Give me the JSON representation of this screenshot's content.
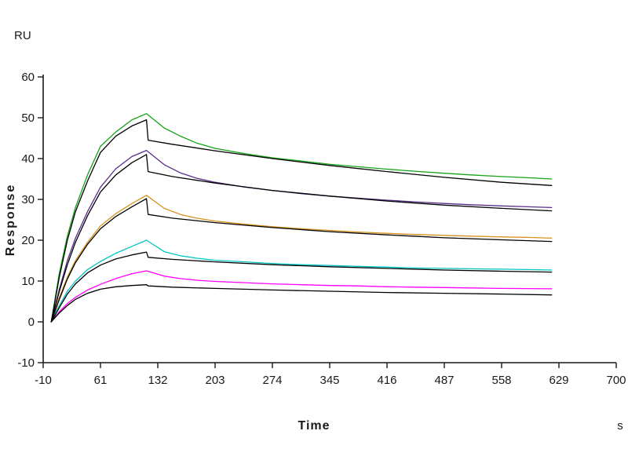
{
  "labels": {
    "y_unit": "RU",
    "ylabel": "Response",
    "xlabel": "Time",
    "x_unit": "s"
  },
  "chart_data": {
    "type": "line",
    "title": "",
    "xlabel": "Time",
    "ylabel": "Response",
    "x_unit": "s",
    "y_unit": "RU",
    "xlim": [
      -10,
      700
    ],
    "ylim": [
      -10,
      60
    ],
    "x_ticks": [
      -10,
      61,
      132,
      203,
      274,
      345,
      416,
      487,
      558,
      629,
      700
    ],
    "y_ticks": [
      -10,
      0,
      10,
      20,
      30,
      40,
      50,
      60
    ],
    "grid": false,
    "legend": "none",
    "description": "SPR sensorgram: five analyte concentrations (colored response curves) each overlaid with a black kinetic fit; association ~0-118 s, dissociation ~118-620 s",
    "series": [
      {
        "name": "conc-1-response",
        "role": "data",
        "color": "#17a317",
        "points": [
          [
            0,
            0
          ],
          [
            10,
            12
          ],
          [
            20,
            21
          ],
          [
            30,
            28
          ],
          [
            45,
            36
          ],
          [
            61,
            43
          ],
          [
            80,
            46.5
          ],
          [
            100,
            49.5
          ],
          [
            118,
            51
          ],
          [
            140,
            47.5
          ],
          [
            160,
            45.5
          ],
          [
            180,
            43.8
          ],
          [
            203,
            42.5
          ],
          [
            240,
            41.2
          ],
          [
            274,
            40.2
          ],
          [
            310,
            39.4
          ],
          [
            345,
            38.6
          ],
          [
            380,
            38
          ],
          [
            416,
            37.4
          ],
          [
            450,
            36.9
          ],
          [
            487,
            36.4
          ],
          [
            520,
            36
          ],
          [
            558,
            35.6
          ],
          [
            590,
            35.3
          ],
          [
            620,
            35
          ]
        ]
      },
      {
        "name": "conc-2-response",
        "role": "data",
        "color": "#5a2d8a",
        "points": [
          [
            0,
            0
          ],
          [
            10,
            8
          ],
          [
            20,
            15
          ],
          [
            30,
            20.5
          ],
          [
            45,
            27
          ],
          [
            61,
            33
          ],
          [
            80,
            37.5
          ],
          [
            100,
            40.5
          ],
          [
            118,
            42
          ],
          [
            140,
            38.5
          ],
          [
            160,
            36.5
          ],
          [
            180,
            35.2
          ],
          [
            203,
            34.2
          ],
          [
            240,
            33
          ],
          [
            274,
            32.2
          ],
          [
            310,
            31.4
          ],
          [
            345,
            30.8
          ],
          [
            380,
            30.3
          ],
          [
            416,
            29.8
          ],
          [
            450,
            29.4
          ],
          [
            487,
            29
          ],
          [
            520,
            28.7
          ],
          [
            558,
            28.4
          ],
          [
            590,
            28.2
          ],
          [
            620,
            28
          ]
        ]
      },
      {
        "name": "conc-3-response",
        "role": "data",
        "color": "#d4921e",
        "points": [
          [
            0,
            0
          ],
          [
            10,
            6
          ],
          [
            20,
            11
          ],
          [
            30,
            15
          ],
          [
            45,
            19.5
          ],
          [
            61,
            23.5
          ],
          [
            80,
            26.5
          ],
          [
            100,
            29
          ],
          [
            118,
            31
          ],
          [
            140,
            27.8
          ],
          [
            160,
            26.3
          ],
          [
            180,
            25.4
          ],
          [
            203,
            24.7
          ],
          [
            240,
            23.9
          ],
          [
            274,
            23.3
          ],
          [
            310,
            22.8
          ],
          [
            345,
            22.4
          ],
          [
            380,
            22
          ],
          [
            416,
            21.7
          ],
          [
            450,
            21.4
          ],
          [
            487,
            21.2
          ],
          [
            520,
            21
          ],
          [
            558,
            20.8
          ],
          [
            590,
            20.7
          ],
          [
            620,
            20.5
          ]
        ]
      },
      {
        "name": "conc-4-response",
        "role": "data",
        "color": "#00c6c6",
        "points": [
          [
            0,
            0
          ],
          [
            10,
            4
          ],
          [
            20,
            7.5
          ],
          [
            30,
            10
          ],
          [
            45,
            12.8
          ],
          [
            61,
            14.8
          ],
          [
            80,
            16.8
          ],
          [
            100,
            18.5
          ],
          [
            118,
            20
          ],
          [
            140,
            17.2
          ],
          [
            160,
            16.2
          ],
          [
            180,
            15.6
          ],
          [
            203,
            15.1
          ],
          [
            240,
            14.7
          ],
          [
            274,
            14.3
          ],
          [
            310,
            14
          ],
          [
            345,
            13.8
          ],
          [
            380,
            13.6
          ],
          [
            416,
            13.4
          ],
          [
            450,
            13.2
          ],
          [
            487,
            13.1
          ],
          [
            520,
            13
          ],
          [
            558,
            12.9
          ],
          [
            590,
            12.8
          ],
          [
            620,
            12.7
          ]
        ]
      },
      {
        "name": "conc-5-response",
        "role": "data",
        "color": "#ff00ff",
        "points": [
          [
            0,
            0
          ],
          [
            10,
            2.5
          ],
          [
            20,
            4.5
          ],
          [
            30,
            6
          ],
          [
            45,
            7.8
          ],
          [
            61,
            9.2
          ],
          [
            80,
            10.6
          ],
          [
            100,
            11.8
          ],
          [
            118,
            12.5
          ],
          [
            140,
            11.2
          ],
          [
            160,
            10.6
          ],
          [
            180,
            10.2
          ],
          [
            203,
            9.9
          ],
          [
            240,
            9.6
          ],
          [
            274,
            9.3
          ],
          [
            310,
            9.1
          ],
          [
            345,
            8.9
          ],
          [
            380,
            8.8
          ],
          [
            416,
            8.6
          ],
          [
            450,
            8.5
          ],
          [
            487,
            8.4
          ],
          [
            520,
            8.3
          ],
          [
            558,
            8.2
          ],
          [
            590,
            8.15
          ],
          [
            620,
            8.1
          ]
        ]
      },
      {
        "name": "conc-1-fit",
        "role": "fit",
        "color": "#000000",
        "points": [
          [
            0,
            0
          ],
          [
            10,
            11
          ],
          [
            20,
            20
          ],
          [
            30,
            27
          ],
          [
            45,
            34.5
          ],
          [
            61,
            41.5
          ],
          [
            80,
            45.5
          ],
          [
            100,
            48
          ],
          [
            118,
            49.5
          ],
          [
            120,
            44.5
          ],
          [
            150,
            43.5
          ],
          [
            203,
            41.9
          ],
          [
            274,
            40
          ],
          [
            345,
            38.3
          ],
          [
            416,
            36.8
          ],
          [
            487,
            35.4
          ],
          [
            558,
            34.2
          ],
          [
            620,
            33.4
          ]
        ]
      },
      {
        "name": "conc-2-fit",
        "role": "fit",
        "color": "#000000",
        "points": [
          [
            0,
            0
          ],
          [
            10,
            7.5
          ],
          [
            20,
            14
          ],
          [
            30,
            19.5
          ],
          [
            45,
            26
          ],
          [
            61,
            31.8
          ],
          [
            80,
            36
          ],
          [
            100,
            39
          ],
          [
            118,
            41
          ],
          [
            120,
            36.8
          ],
          [
            150,
            35.6
          ],
          [
            203,
            34
          ],
          [
            274,
            32.2
          ],
          [
            345,
            30.8
          ],
          [
            416,
            29.6
          ],
          [
            487,
            28.6
          ],
          [
            558,
            27.8
          ],
          [
            620,
            27.2
          ]
        ]
      },
      {
        "name": "conc-3-fit",
        "role": "fit",
        "color": "#000000",
        "points": [
          [
            0,
            0
          ],
          [
            10,
            5.5
          ],
          [
            20,
            10.5
          ],
          [
            30,
            14.5
          ],
          [
            45,
            19
          ],
          [
            61,
            22.8
          ],
          [
            80,
            25.8
          ],
          [
            100,
            28.2
          ],
          [
            118,
            30.2
          ],
          [
            120,
            26.3
          ],
          [
            150,
            25.4
          ],
          [
            203,
            24.3
          ],
          [
            274,
            23.1
          ],
          [
            345,
            22.1
          ],
          [
            416,
            21.3
          ],
          [
            487,
            20.6
          ],
          [
            558,
            20.1
          ],
          [
            620,
            19.7
          ]
        ]
      },
      {
        "name": "conc-4-fit",
        "role": "fit",
        "color": "#000000",
        "points": [
          [
            0,
            0
          ],
          [
            10,
            3.5
          ],
          [
            20,
            6.8
          ],
          [
            30,
            9.3
          ],
          [
            45,
            12
          ],
          [
            61,
            13.9
          ],
          [
            80,
            15.4
          ],
          [
            100,
            16.4
          ],
          [
            118,
            17.1
          ],
          [
            120,
            15.8
          ],
          [
            150,
            15.3
          ],
          [
            203,
            14.7
          ],
          [
            274,
            14
          ],
          [
            345,
            13.5
          ],
          [
            416,
            13.1
          ],
          [
            487,
            12.7
          ],
          [
            558,
            12.4
          ],
          [
            620,
            12.2
          ]
        ]
      },
      {
        "name": "conc-5-fit",
        "role": "fit",
        "color": "#000000",
        "points": [
          [
            0,
            0
          ],
          [
            10,
            2.2
          ],
          [
            20,
            4
          ],
          [
            30,
            5.5
          ],
          [
            45,
            7
          ],
          [
            61,
            8
          ],
          [
            80,
            8.6
          ],
          [
            100,
            8.9
          ],
          [
            118,
            9.1
          ],
          [
            120,
            8.8
          ],
          [
            150,
            8.5
          ],
          [
            203,
            8.2
          ],
          [
            274,
            7.8
          ],
          [
            345,
            7.5
          ],
          [
            416,
            7.2
          ],
          [
            487,
            7
          ],
          [
            558,
            6.8
          ],
          [
            620,
            6.6
          ]
        ]
      }
    ]
  }
}
